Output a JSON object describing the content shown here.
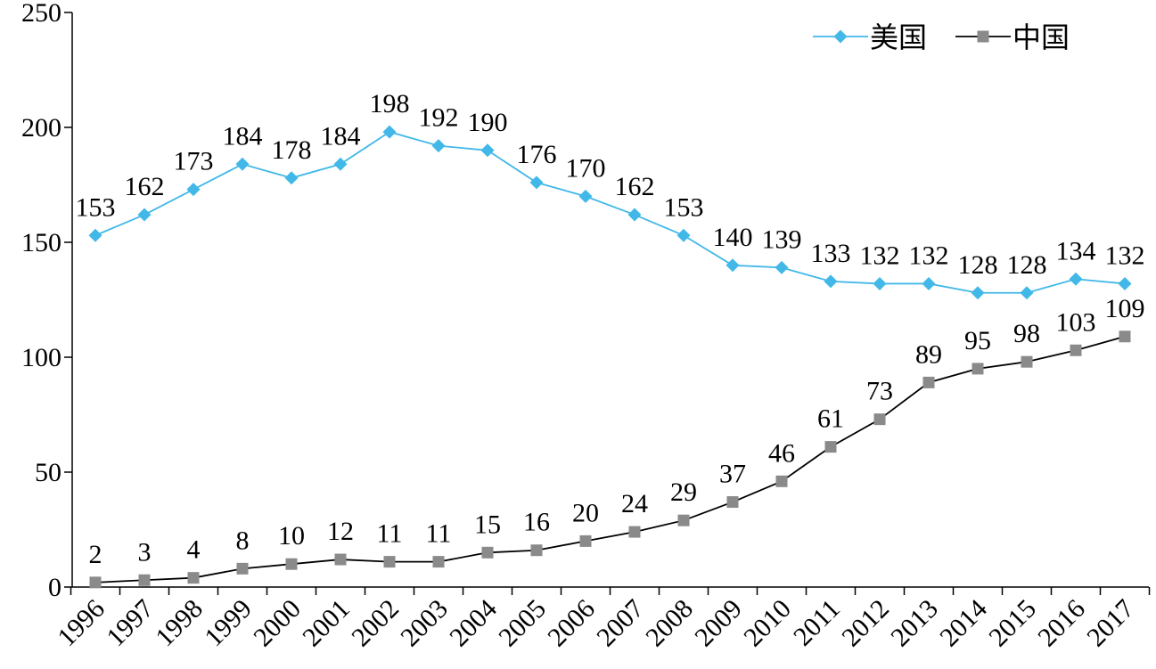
{
  "chart_data": {
    "type": "line",
    "title": "",
    "xlabel": "",
    "ylabel": "",
    "ylim": [
      0,
      250
    ],
    "yticks": [
      0,
      50,
      100,
      150,
      200,
      250
    ],
    "grid": false,
    "legend_position": "top-right",
    "categories": [
      "1996",
      "1997",
      "1998",
      "1999",
      "2000",
      "2001",
      "2002",
      "2003",
      "2004",
      "2005",
      "2006",
      "2007",
      "2008",
      "2009",
      "2010",
      "2011",
      "2012",
      "2013",
      "2014",
      "2015",
      "2016",
      "2017"
    ],
    "series": [
      {
        "name": "美国",
        "color": "#41b8e8",
        "marker": "diamond",
        "values": [
          153,
          162,
          173,
          184,
          178,
          184,
          198,
          192,
          190,
          176,
          170,
          162,
          153,
          140,
          139,
          133,
          132,
          132,
          128,
          128,
          134,
          132
        ]
      },
      {
        "name": "中国",
        "color": "#000000",
        "marker_color": "#8a8a8a",
        "marker": "square",
        "values": [
          2,
          3,
          4,
          8,
          10,
          12,
          11,
          11,
          15,
          16,
          20,
          24,
          29,
          37,
          46,
          61,
          73,
          89,
          95,
          98,
          103,
          109
        ]
      }
    ]
  }
}
